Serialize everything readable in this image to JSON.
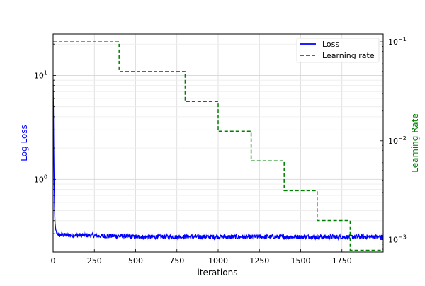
{
  "chart_data": {
    "type": "line",
    "title": "",
    "xlabel": "iterations",
    "ylabel_left": "Log Loss",
    "ylabel_right": "Learning Rate",
    "xlim": [
      0,
      2000
    ],
    "ylim_left": [
      0.2,
      25
    ],
    "ylim_right": [
      0.00075,
      0.12
    ],
    "yscale_left": "log",
    "yscale_right": "log",
    "grid": true,
    "legend_position": "top-right",
    "x_ticks": [
      0,
      250,
      500,
      750,
      1000,
      1250,
      1500,
      1750
    ],
    "x_tick_labels": [
      "0",
      "250",
      "500",
      "750",
      "1000",
      "1250",
      "1500",
      "1750"
    ],
    "y_left_ticks": [
      {
        "value": 1,
        "base": "10",
        "exp": "0"
      },
      {
        "value": 10,
        "base": "10",
        "exp": "1"
      }
    ],
    "y_right_ticks": [
      {
        "value": 0.001,
        "base": "10",
        "exp": "−3"
      },
      {
        "value": 0.01,
        "base": "10",
        "exp": "−2"
      },
      {
        "value": 0.1,
        "base": "10",
        "exp": "−1"
      }
    ],
    "series": [
      {
        "name": "Loss",
        "axis": "left",
        "color": "#0000ff",
        "style": "solid",
        "x": [
          0,
          2,
          4,
          6,
          8,
          10,
          12,
          15,
          20,
          25,
          30,
          40,
          50,
          75,
          100,
          150,
          200,
          300,
          400,
          500,
          600,
          700,
          800,
          900,
          1000,
          1100,
          1200,
          1300,
          1400,
          1500,
          1600,
          1700,
          1800,
          1900,
          2000
        ],
        "y": [
          9.0,
          4.5,
          2.0,
          1.0,
          0.6,
          0.45,
          0.38,
          0.33,
          0.31,
          0.3,
          0.3,
          0.29,
          0.295,
          0.29,
          0.29,
          0.29,
          0.29,
          0.285,
          0.285,
          0.28,
          0.28,
          0.28,
          0.28,
          0.28,
          0.28,
          0.28,
          0.28,
          0.28,
          0.28,
          0.28,
          0.28,
          0.28,
          0.28,
          0.28,
          0.28
        ],
        "noise": 0.05
      },
      {
        "name": "Learning rate",
        "axis": "right",
        "color": "#008000",
        "style": "dashed",
        "x": [
          0,
          400,
          400,
          800,
          800,
          1000,
          1000,
          1200,
          1200,
          1400,
          1400,
          1600,
          1600,
          1800,
          1800,
          2000
        ],
        "y": [
          0.1,
          0.1,
          0.05,
          0.05,
          0.025,
          0.025,
          0.0125,
          0.0125,
          0.00625,
          0.00625,
          0.003125,
          0.003125,
          0.0015625,
          0.0015625,
          0.00078125,
          0.00078125
        ]
      }
    ]
  }
}
